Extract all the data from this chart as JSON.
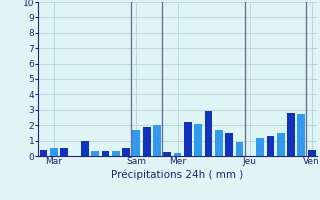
{
  "values": [
    0.4,
    0.5,
    0.5,
    0.0,
    1.0,
    0.3,
    0.3,
    0.3,
    0.5,
    1.7,
    1.9,
    2.0,
    0.25,
    0.2,
    2.2,
    2.1,
    2.9,
    1.7,
    1.5,
    0.9,
    0.0,
    1.2,
    1.3,
    1.5,
    2.8,
    2.7,
    0.4
  ],
  "day_labels": [
    "Mar",
    "Sam",
    "Mer",
    "Jeu",
    "Ven"
  ],
  "day_tick_positions": [
    1,
    9,
    13,
    20,
    26
  ],
  "vline_positions": [
    8.5,
    11.5,
    19.5,
    25.5
  ],
  "bar_color_dark": "#1133bb",
  "bar_color_light": "#3399ee",
  "xlabel": "Précipitations 24h ( mm )",
  "ylim": [
    0,
    10
  ],
  "yticks": [
    0,
    1,
    2,
    3,
    4,
    5,
    6,
    7,
    8,
    9,
    10
  ],
  "bg_color": "#dff4f4",
  "grid_color": "#aacece",
  "tick_color": "#222277",
  "label_color": "#222277",
  "vline_color": "#666699",
  "spine_color": "#222277"
}
